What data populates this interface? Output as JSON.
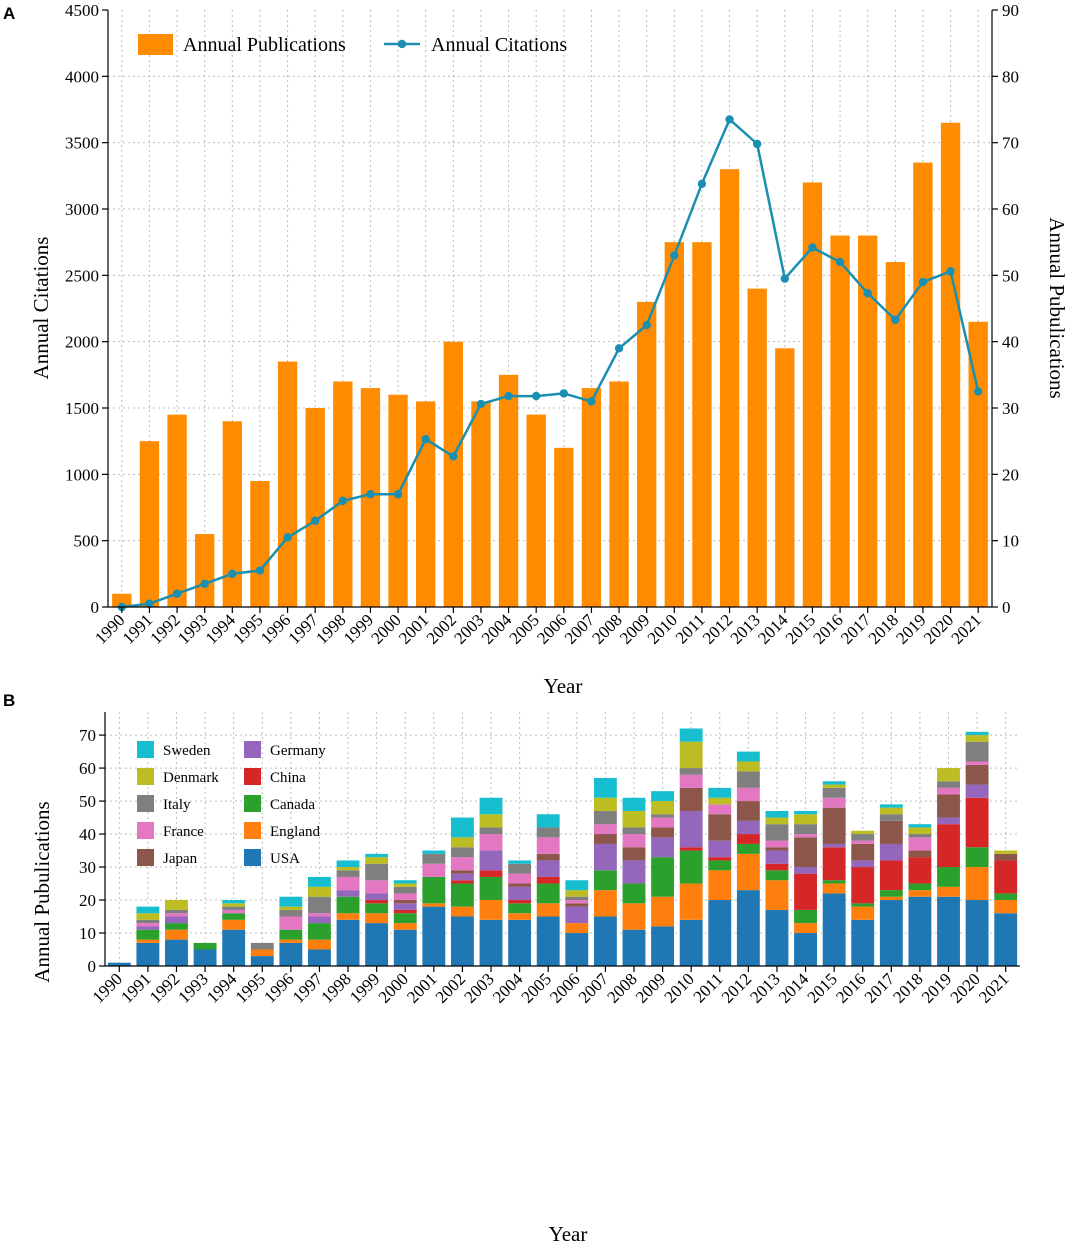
{
  "panels": {
    "a_label": "A",
    "b_label": "B"
  },
  "chart_data": [
    {
      "type": "bar+line",
      "panel": "A",
      "categories": [
        "1990",
        "1991",
        "1992",
        "1993",
        "1994",
        "1995",
        "1996",
        "1997",
        "1998",
        "1999",
        "2000",
        "2001",
        "2002",
        "2003",
        "2004",
        "2005",
        "2006",
        "2007",
        "2008",
        "2009",
        "2010",
        "2011",
        "2012",
        "2013",
        "2014",
        "2015",
        "2016",
        "2017",
        "2018",
        "2019",
        "2020",
        "2021"
      ],
      "series": [
        {
          "name": "Annual Publications",
          "kind": "bar",
          "color": "#ff8c00",
          "axis": "left",
          "values": [
            100,
            1250,
            1450,
            550,
            1400,
            950,
            1850,
            1500,
            1700,
            1650,
            1600,
            1550,
            2000,
            1550,
            1750,
            1450,
            1200,
            1650,
            1700,
            2300,
            2750,
            2750,
            3300,
            2400,
            1950,
            3200,
            2800,
            2800,
            2600,
            3350,
            3650,
            2150
          ]
        },
        {
          "name": "Annual Citations",
          "kind": "line",
          "color": "#1a8fb0",
          "axis": "right",
          "values": [
            0,
            0.5,
            2,
            3.5,
            5,
            5.5,
            10.5,
            13,
            16,
            17,
            17,
            25.3,
            22.7,
            30.6,
            31.8,
            31.8,
            32.2,
            31,
            39,
            42.5,
            53,
            63.8,
            73.5,
            69.8,
            49.5,
            54.2,
            52,
            47.3,
            43.3,
            49,
            50.6,
            32.5
          ]
        }
      ],
      "xlabel": "Year",
      "ylabel_left": "Annual Citations",
      "ylabel_right": "Annual Pubulications",
      "ylim_left": [
        0,
        4500
      ],
      "yticks_left": [
        0,
        500,
        1000,
        1500,
        2000,
        2500,
        3000,
        3500,
        4000,
        4500
      ],
      "ylim_right": [
        0,
        90
      ],
      "yticks_right": [
        0,
        10,
        20,
        30,
        40,
        50,
        60,
        70,
        80,
        90
      ],
      "grid": true,
      "legend_position": "top-left"
    },
    {
      "type": "bar",
      "stacked": true,
      "panel": "B",
      "categories": [
        "1990",
        "1991",
        "1992",
        "1993",
        "1994",
        "1995",
        "1996",
        "1997",
        "1998",
        "1999",
        "2000",
        "2001",
        "2002",
        "2003",
        "2004",
        "2005",
        "2006",
        "2007",
        "2008",
        "2009",
        "2010",
        "2011",
        "2012",
        "2013",
        "2014",
        "2015",
        "2016",
        "2017",
        "2018",
        "2019",
        "2020",
        "2021"
      ],
      "series": [
        {
          "name": "USA",
          "color": "#1f77b4",
          "values": [
            1,
            7,
            8,
            5,
            11,
            3,
            7,
            5,
            14,
            13,
            11,
            18,
            15,
            14,
            14,
            15,
            10,
            15,
            11,
            12,
            14,
            20,
            23,
            17,
            10,
            22,
            14,
            20,
            21,
            21,
            20,
            16
          ]
        },
        {
          "name": "England",
          "color": "#ff7f0e",
          "values": [
            0,
            1,
            3,
            0,
            3,
            2,
            1,
            3,
            2,
            3,
            2,
            1,
            3,
            6,
            2,
            4,
            3,
            8,
            8,
            9,
            11,
            9,
            11,
            9,
            3,
            3,
            4,
            1,
            2,
            3,
            10,
            4
          ]
        },
        {
          "name": "Canada",
          "color": "#2ca02c",
          "values": [
            0,
            3,
            2,
            2,
            2,
            0,
            3,
            5,
            5,
            3,
            3,
            8,
            7,
            7,
            3,
            6,
            0,
            6,
            6,
            12,
            10,
            3,
            3,
            3,
            4,
            1,
            1,
            2,
            2,
            6,
            6,
            2
          ]
        },
        {
          "name": "China",
          "color": "#d62728",
          "values": [
            0,
            0,
            0,
            0,
            0,
            0,
            0,
            0,
            0,
            1,
            1,
            0,
            1,
            2,
            1,
            2,
            0,
            0,
            0,
            0,
            1,
            1,
            3,
            2,
            11,
            10,
            11,
            9,
            8,
            13,
            15,
            10
          ]
        },
        {
          "name": "Germany",
          "color": "#9467bd",
          "values": [
            0,
            1,
            2,
            0,
            0,
            0,
            0,
            2,
            2,
            2,
            2,
            0,
            2,
            6,
            4,
            5,
            5,
            8,
            7,
            6,
            11,
            5,
            4,
            4,
            2,
            1,
            2,
            5,
            0,
            2,
            4,
            0
          ]
        },
        {
          "name": "Japan",
          "color": "#8c564b",
          "values": [
            0,
            0,
            0,
            0,
            0,
            0,
            0,
            0,
            0,
            0,
            1,
            0,
            1,
            0,
            1,
            2,
            1,
            3,
            4,
            3,
            7,
            8,
            6,
            1,
            9,
            11,
            5,
            7,
            2,
            7,
            6,
            2
          ]
        },
        {
          "name": "France",
          "color": "#e377c2",
          "values": [
            0,
            1,
            1,
            0,
            1,
            0,
            4,
            1,
            4,
            4,
            2,
            4,
            4,
            5,
            3,
            5,
            1,
            3,
            4,
            3,
            4,
            3,
            4,
            2,
            1,
            3,
            1,
            0,
            4,
            2,
            1,
            0
          ]
        },
        {
          "name": "Italy",
          "color": "#7f7f7f",
          "values": [
            0,
            1,
            1,
            0,
            1,
            2,
            2,
            5,
            2,
            5,
            2,
            3,
            3,
            2,
            3,
            3,
            1,
            4,
            2,
            1,
            2,
            0,
            5,
            5,
            3,
            3,
            2,
            2,
            1,
            2,
            6,
            0
          ]
        },
        {
          "name": "Denmark",
          "color": "#bcbd22",
          "values": [
            0,
            2,
            3,
            0,
            1,
            0,
            1,
            3,
            1,
            2,
            1,
            0,
            3,
            4,
            0,
            0,
            2,
            4,
            5,
            4,
            8,
            2,
            3,
            2,
            3,
            1,
            1,
            2,
            2,
            4,
            2,
            1
          ]
        },
        {
          "name": "Sweden",
          "color": "#17becf",
          "values": [
            0,
            2,
            0,
            0,
            1,
            0,
            3,
            3,
            2,
            1,
            1,
            1,
            6,
            5,
            1,
            4,
            3,
            6,
            4,
            3,
            4,
            3,
            3,
            2,
            1,
            1,
            0,
            1,
            1,
            0,
            1,
            0
          ]
        }
      ],
      "legend_order": [
        "Sweden",
        "Denmark",
        "Italy",
        "France",
        "Japan",
        "Germany",
        "China",
        "Canada",
        "England",
        "USA"
      ],
      "xlabel": "Year",
      "ylabel": "Annual Pubulications",
      "ylim": [
        0,
        77
      ],
      "yticks": [
        0,
        10,
        20,
        30,
        40,
        50,
        60,
        70
      ],
      "grid": true,
      "legend_position": "top-left"
    }
  ]
}
